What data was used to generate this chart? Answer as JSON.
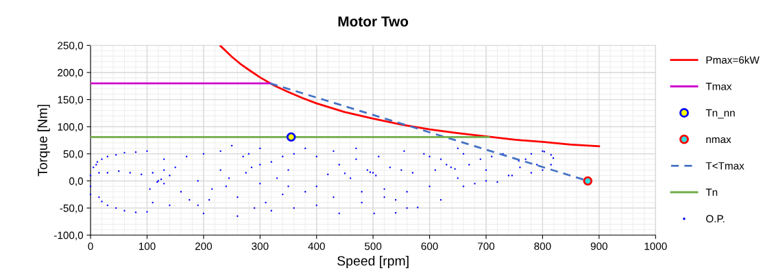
{
  "chart_data": {
    "type": "line",
    "title": "Motor Two",
    "xlabel": "Speed [rpm]",
    "ylabel": "Torque [Nm]",
    "xlim": [
      0,
      1000
    ],
    "xticks": [
      0,
      100,
      200,
      300,
      400,
      500,
      600,
      700,
      800,
      900,
      1000
    ],
    "ylim": [
      -100,
      250
    ],
    "yticks": [
      {
        "value": -100,
        "label": "-100,0"
      },
      {
        "value": -50,
        "label": "-50,0"
      },
      {
        "value": 0,
        "label": "0,0"
      },
      {
        "value": 50,
        "label": "50,0"
      },
      {
        "value": 100,
        "label": "100,0"
      },
      {
        "value": 150,
        "label": "150,0"
      },
      {
        "value": 200,
        "label": "200,0"
      },
      {
        "value": 250,
        "label": "250,0"
      }
    ],
    "grid": true,
    "legend": "right",
    "series": [
      {
        "name": "Pmax=6kW",
        "color": "#ff0000",
        "x": [
          230,
          240,
          250,
          265,
          280,
          300,
          325,
          350,
          375,
          400,
          450,
          500,
          550,
          600,
          650,
          700,
          750,
          800,
          850,
          900
        ],
        "values": [
          249,
          239,
          229,
          216,
          205,
          191,
          176,
          164,
          153,
          143,
          127,
          115,
          104,
          95,
          88,
          82,
          76,
          72,
          67,
          64
        ]
      },
      {
        "name": "Tmax",
        "color": "#cc00cc",
        "x": [
          0,
          318
        ],
        "values": [
          180,
          180
        ]
      },
      {
        "name": "Tn_nn",
        "type": "scatter",
        "color": "#0000ff",
        "colors": [
          "#ffff00"
        ],
        "marker": "circle",
        "x": [
          355
        ],
        "values": [
          81
        ]
      },
      {
        "name": "nmax",
        "type": "scatter",
        "color": "#ff0000",
        "colors": [
          "#33dddd"
        ],
        "marker": "circle",
        "x": [
          880
        ],
        "values": [
          0
        ]
      },
      {
        "name": "T<Tmax",
        "color": "#4472c4",
        "line_style": "dashed",
        "x": [
          318,
          880
        ],
        "values": [
          180,
          0
        ]
      },
      {
        "name": "Tn",
        "color": "#70ad47",
        "x": [
          0,
          705
        ],
        "values": [
          81,
          81
        ]
      },
      {
        "name": "O.P.",
        "type": "scatter",
        "color": "#0000ff",
        "marker": "point",
        "x": [
          0,
          0,
          0,
          5,
          10,
          12,
          20,
          30,
          45,
          60,
          80,
          100,
          15,
          20,
          30,
          45,
          60,
          80,
          100,
          15,
          30,
          50,
          70,
          90,
          110,
          130,
          120,
          125,
          118,
          130,
          140,
          150,
          160,
          175,
          190,
          200,
          210,
          230,
          240,
          260,
          270,
          280,
          290,
          300,
          130,
          170,
          200,
          230,
          250,
          260,
          140,
          110,
          105,
          190,
          215,
          245,
          275,
          285,
          300,
          320,
          320,
          330,
          340,
          310,
          300,
          350,
          360,
          380,
          400,
          400,
          420,
          430,
          440,
          450,
          460,
          470,
          480,
          490,
          500,
          505,
          480,
          380,
          360,
          400,
          440,
          350,
          430,
          470,
          510,
          520,
          530,
          540,
          550,
          560,
          340,
          495,
          502,
          520,
          540,
          560,
          579,
          600,
          610,
          620,
          630,
          638,
          645,
          650,
          660,
          670,
          680,
          690,
          700,
          710,
          720,
          730,
          740,
          746,
          758,
          770,
          780,
          790,
          800,
          803,
          815,
          819,
          815,
          800,
          780,
          760,
          700,
          660,
          620,
          600,
          570,
          590,
          555,
          650
        ],
        "values": [
          -10,
          10,
          -25,
          25,
          30,
          35,
          40,
          45,
          48,
          52,
          53,
          55,
          -30,
          -38,
          -45,
          -50,
          -55,
          -58,
          -57,
          15,
          15,
          18,
          15,
          12,
          15,
          20,
          0,
          3,
          -2,
          -5,
          10,
          25,
          -20,
          -35,
          -45,
          -60,
          -35,
          20,
          -10,
          -30,
          45,
          50,
          -50,
          60,
          40,
          45,
          50,
          55,
          65,
          -65,
          -45,
          -40,
          -15,
          0,
          -15,
          5,
          15,
          25,
          30,
          35,
          -55,
          5,
          -25,
          -40,
          -5,
          20,
          50,
          60,
          45,
          -10,
          12,
          -30,
          30,
          14,
          5,
          40,
          -40,
          20,
          15,
          10,
          -20,
          -20,
          -50,
          -45,
          -60,
          -10,
          55,
          60,
          45,
          -15,
          25,
          -35,
          20,
          -50,
          45,
          16,
          -60,
          -30,
          -59,
          -20,
          -49,
          -10,
          20,
          40,
          30,
          25,
          22,
          5,
          50,
          30,
          -5,
          40,
          20,
          45,
          -2,
          50,
          10,
          10,
          37,
          40,
          50,
          30,
          55,
          54,
          48,
          42,
          30,
          20,
          15,
          25,
          0,
          -10,
          -35,
          45,
          15,
          50,
          55,
          60
        ]
      }
    ]
  }
}
